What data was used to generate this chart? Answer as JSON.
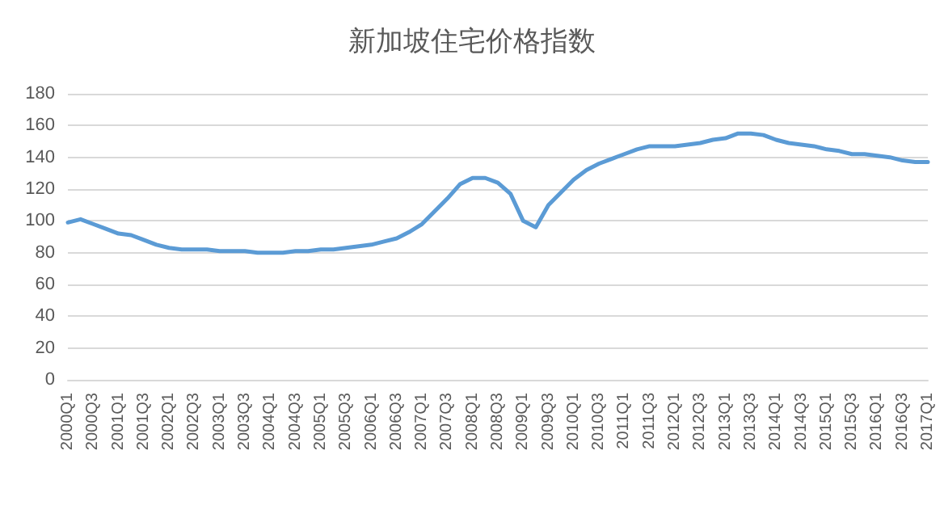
{
  "chart_data": {
    "type": "line",
    "title": "新加坡住宅价格指数",
    "categories": [
      "2000Q1",
      null,
      "2000Q3",
      null,
      "2001Q1",
      null,
      "2001Q3",
      null,
      "2002Q1",
      null,
      "2002Q3",
      null,
      "2003Q1",
      null,
      "2003Q3",
      null,
      "2004Q1",
      null,
      "2004Q3",
      null,
      "2005Q1",
      null,
      "2005Q3",
      null,
      "2006Q1",
      null,
      "2006Q3",
      null,
      "2007Q1",
      null,
      "2007Q3",
      null,
      "2008Q1",
      null,
      "2008Q3",
      null,
      "2009Q1",
      null,
      "2009Q3",
      null,
      "2010Q1",
      null,
      "2010Q3",
      null,
      "2011Q1",
      null,
      "2011Q3",
      null,
      "2012Q1",
      null,
      "2012Q3",
      null,
      "2013Q1",
      null,
      "2013Q3",
      null,
      "2014Q1",
      null,
      "2014Q3",
      null,
      "2015Q1",
      null,
      "2015Q3",
      null,
      "2016Q1",
      null,
      "2016Q3",
      null,
      "2017Q1"
    ],
    "series": [
      {
        "color": "#5b9bd5",
        "values": [
          99,
          101,
          98,
          95,
          92,
          91,
          88,
          85,
          83,
          82,
          82,
          82,
          81,
          81,
          81,
          80,
          80,
          80,
          81,
          81,
          82,
          82,
          83,
          84,
          85,
          87,
          89,
          93,
          98,
          106,
          114,
          123,
          127,
          127,
          124,
          117,
          100,
          96,
          110,
          118,
          126,
          132,
          136,
          139,
          142,
          145,
          147,
          147,
          147,
          148,
          149,
          151,
          152,
          155,
          155,
          154,
          151,
          149,
          148,
          147,
          145,
          144,
          142,
          142,
          141,
          140,
          138,
          137,
          137
        ]
      }
    ],
    "ylim": [
      0,
      180
    ],
    "yticks": [
      0,
      20,
      40,
      60,
      80,
      100,
      120,
      140,
      160,
      180
    ],
    "grid": "y",
    "marker": "none",
    "line_style": "solid"
  }
}
